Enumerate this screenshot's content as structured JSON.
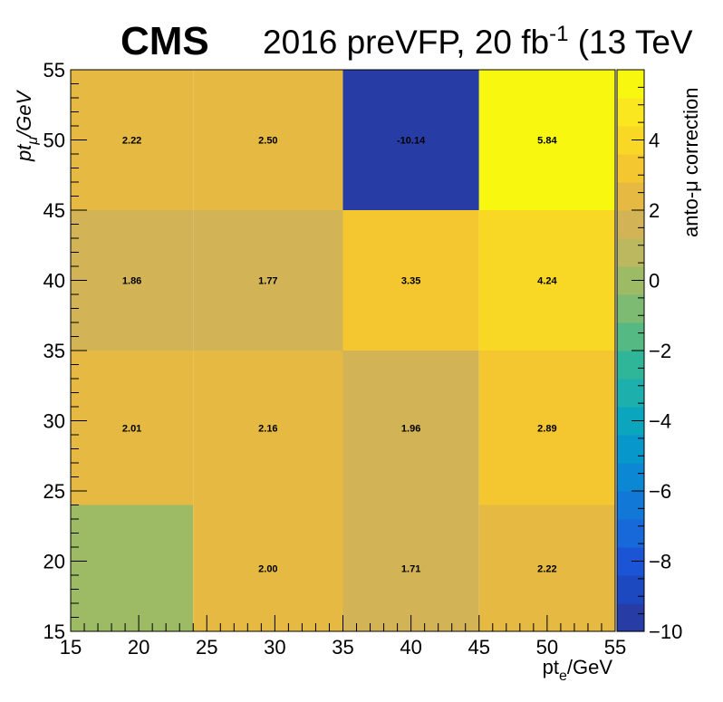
{
  "header": {
    "experiment": "CMS",
    "run": "2016 preVFP, 20 fb",
    "lumi_exponent": "-1",
    "energy": " (13 TeV"
  },
  "chart_data": {
    "type": "heatmap",
    "xlabel": {
      "main": "pt",
      "sub": "e",
      "unit": "/GeV"
    },
    "ylabel": {
      "main": "pt",
      "sub": "μ",
      "unit": "/GeV"
    },
    "zlabel": "anto-μ correction",
    "x_edges": [
      15,
      24,
      35,
      45,
      55
    ],
    "y_edges": [
      15,
      24,
      35,
      45,
      55
    ],
    "xlim": [
      15,
      55
    ],
    "ylim": [
      15,
      55
    ],
    "zlim": [
      -10,
      6
    ],
    "x_ticks": [
      15,
      20,
      25,
      30,
      35,
      40,
      45,
      50,
      55
    ],
    "y_ticks": [
      15,
      20,
      25,
      30,
      35,
      40,
      45,
      50,
      55
    ],
    "z_ticks": [
      -10,
      -8,
      -6,
      -4,
      -2,
      0,
      2,
      4
    ],
    "z_tick_labels": [
      "−10",
      "−8",
      "−6",
      "−4",
      "−2",
      "0",
      "2",
      "4"
    ],
    "cells": [
      {
        "x": 0,
        "y": 0,
        "value": 0.0,
        "label": ""
      },
      {
        "x": 1,
        "y": 0,
        "value": 2.0,
        "label": "2.00"
      },
      {
        "x": 2,
        "y": 0,
        "value": 1.71,
        "label": "1.71"
      },
      {
        "x": 3,
        "y": 0,
        "value": 2.22,
        "label": "2.22"
      },
      {
        "x": 0,
        "y": 1,
        "value": 2.01,
        "label": "2.01"
      },
      {
        "x": 1,
        "y": 1,
        "value": 2.16,
        "label": "2.16"
      },
      {
        "x": 2,
        "y": 1,
        "value": 1.96,
        "label": "1.96"
      },
      {
        "x": 3,
        "y": 1,
        "value": 2.89,
        "label": "2.89"
      },
      {
        "x": 0,
        "y": 2,
        "value": 1.86,
        "label": "1.86"
      },
      {
        "x": 1,
        "y": 2,
        "value": 1.77,
        "label": "1.77"
      },
      {
        "x": 2,
        "y": 2,
        "value": 3.35,
        "label": "3.35"
      },
      {
        "x": 3,
        "y": 2,
        "value": 4.24,
        "label": "4.24"
      },
      {
        "x": 0,
        "y": 3,
        "value": 2.22,
        "label": "2.22"
      },
      {
        "x": 1,
        "y": 3,
        "value": 2.5,
        "label": "2.50"
      },
      {
        "x": 2,
        "y": 3,
        "value": -10.14,
        "label": "-10.14"
      },
      {
        "x": 3,
        "y": 3,
        "value": 5.84,
        "label": "5.84"
      }
    ],
    "palette": [
      "#273da5",
      "#1c48c0",
      "#1b55d5",
      "#1768d9",
      "#1178d8",
      "#0c87d3",
      "#0797cb",
      "#0ba5be",
      "#1cafac",
      "#2fb597",
      "#55b983",
      "#7cbb71",
      "#9dbb65",
      "#bbb860",
      "#d2b457",
      "#e5b942",
      "#f4c630",
      "#f8d824",
      "#fae720",
      "#f7f710"
    ]
  }
}
